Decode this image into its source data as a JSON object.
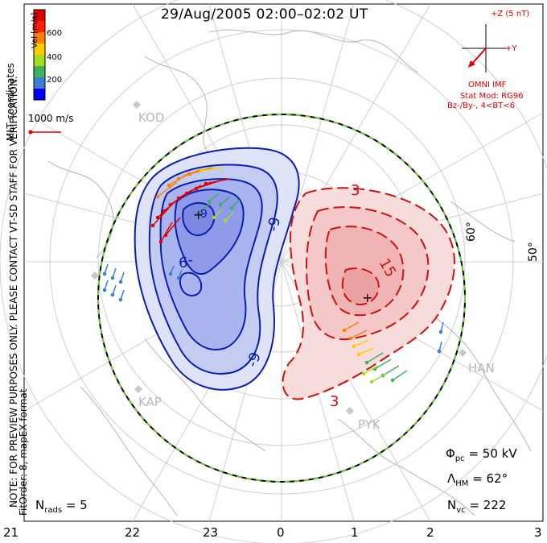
{
  "title": "29/Aug/2005 02:00–02:02 UT",
  "velocity_scale": {
    "unit_label": "Vel [m/s]",
    "ticks": [
      "600",
      "400",
      "200"
    ],
    "colors": [
      "#0000ff",
      "#3a7fd0",
      "#40b060",
      "#a0e020",
      "#ffcc00",
      "#ff8000",
      "#ff2000",
      "#e00000"
    ]
  },
  "vector_scale_label": "1000 m/s",
  "side_text": {
    "coordinates": "MLT coordinates",
    "note": "NOTE: FOR PREVIEW PURPOSES ONLY. PLEASE CONTACT VT-SD STAFF FOR VERIFICATION.",
    "fit": "FitOrder: 8, mapEX format"
  },
  "imf_panel": {
    "z_label": "+Z (5 nT)",
    "y_label": "+Y",
    "source": "OMNI IMF",
    "model": "Stat Mod: RG96",
    "conditions": "Bz-/By-, 4<BT<6",
    "color": "#dd0000"
  },
  "stations": [
    "KOD",
    "KAP",
    "PYK",
    "HAN"
  ],
  "latitude_labels": [
    "60°",
    "50°"
  ],
  "contour_labels": {
    "negative": [
      "-9",
      "-9",
      "-9",
      "-9"
    ],
    "positive": [
      "3",
      "15",
      "3"
    ]
  },
  "stats": {
    "phi_symbol": "Φ",
    "phi_sub": "pc",
    "phi_value": "= 50 kV",
    "lambda_symbol": "Λ",
    "lambda_sub": "HM",
    "lambda_value": "= 62°",
    "nvc_symbol": "N",
    "nvc_sub": "vc",
    "nvc_value": "= 222",
    "nrads_symbol": "N",
    "nrads_sub": "rads",
    "nrads_value": "= 5"
  },
  "mlt_axis": [
    "21",
    "22",
    "23",
    "0",
    "1",
    "2",
    "3"
  ],
  "colors": {
    "negative_cell": "#0a1fb0",
    "positive_cell": "#cc1111",
    "boundary_dash": "#6fcf3f"
  }
}
